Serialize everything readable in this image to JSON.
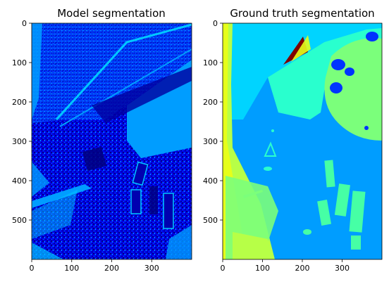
{
  "chart_data": [
    {
      "type": "heatmap",
      "title": "Model segmentation",
      "colormap": "jet",
      "x_ticks": [
        0,
        100,
        200,
        300
      ],
      "y_ticks": [
        0,
        100,
        200,
        300,
        400,
        500
      ],
      "xlim": [
        0,
        400
      ],
      "ylim": [
        600,
        0
      ],
      "grid": false
    },
    {
      "type": "heatmap",
      "title": "Ground truth segmentation",
      "colormap": "jet",
      "x_ticks": [
        0,
        100,
        200,
        300
      ],
      "y_ticks": [
        0,
        100,
        200,
        300,
        400,
        500
      ],
      "xlim": [
        0,
        400
      ],
      "ylim": [
        600,
        0
      ],
      "grid": false
    }
  ],
  "palette": {
    "navy": "#00007f",
    "darkblue": "#0000e0",
    "blue": "#0033ff",
    "mid": "#009dff",
    "sky": "#00d4ff",
    "teal": "#29ffce",
    "mint": "#46ffa5",
    "green": "#7bff7b",
    "lime": "#b7ff47",
    "yellow": "#e6ff1a",
    "red": "#7f0000"
  }
}
